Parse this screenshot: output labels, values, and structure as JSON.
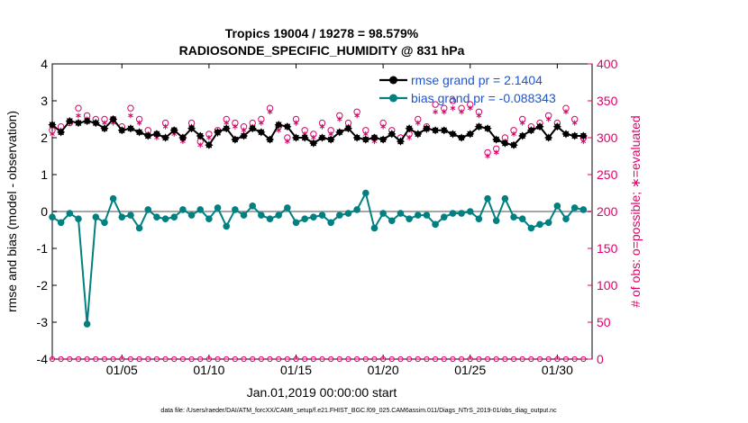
{
  "chart_data": {
    "type": "line",
    "title": "Tropics 19004 / 19278 = 98.579%",
    "subtitle": "RADIOSONDE_SPECIFIC_HUMIDITY @ 831 hPa",
    "xlabel": "Jan.01,2019 00:00:00 start",
    "ylabel_left": "rmse and bias (model - observation)",
    "ylabel_right": "# of obs: o=possible; ∗=evaluated",
    "footer": "data file: /Users/raeder/DAI/ATM_forcXX/CAM6_setup/f.e21.FHIST_BGC.f09_025.CAM6assim.011/Diags_NTrS_2019-01/obs_diag_output.nc",
    "xlim": [
      1,
      32
    ],
    "ylim_left": [
      -4,
      4
    ],
    "ylim_right": [
      0,
      400
    ],
    "x_ticks": [
      5,
      10,
      15,
      20,
      25,
      30
    ],
    "x_tick_labels": [
      "01/05",
      "01/10",
      "01/15",
      "01/20",
      "01/25",
      "01/30"
    ],
    "y_left_ticks": [
      -4,
      -3,
      -2,
      -1,
      0,
      1,
      2,
      3,
      4
    ],
    "y_left_tick_labels": [
      "-4",
      "-3",
      "-2",
      "-1",
      "0",
      "1",
      "2",
      "3",
      "4"
    ],
    "y_right_ticks": [
      0,
      50,
      100,
      150,
      200,
      250,
      300,
      350,
      400
    ],
    "y_right_tick_labels": [
      "0",
      "50",
      "100",
      "150",
      "200",
      "250",
      "300",
      "350",
      "400"
    ],
    "x": [
      1.0,
      1.5,
      2.0,
      2.5,
      3.0,
      3.5,
      4.0,
      4.5,
      5.0,
      5.5,
      6.0,
      6.5,
      7.0,
      7.5,
      8.0,
      8.5,
      9.0,
      9.5,
      10.0,
      10.5,
      11.0,
      11.5,
      12.0,
      12.5,
      13.0,
      13.5,
      14.0,
      14.5,
      15.0,
      15.5,
      16.0,
      16.5,
      17.0,
      17.5,
      18.0,
      18.5,
      19.0,
      19.5,
      20.0,
      20.5,
      21.0,
      21.5,
      22.0,
      22.5,
      23.0,
      23.5,
      24.0,
      24.5,
      25.0,
      25.5,
      26.0,
      26.5,
      27.0,
      27.5,
      28.0,
      28.5,
      29.0,
      29.5,
      30.0,
      30.5,
      31.0,
      31.5
    ],
    "series": [
      {
        "name": "rmse",
        "legend": "rmse grand pr = 2.1404",
        "color": "#000000",
        "axis": "left",
        "values": [
          2.35,
          2.15,
          2.45,
          2.4,
          2.45,
          2.4,
          2.25,
          2.5,
          2.2,
          2.25,
          2.15,
          2.05,
          2.1,
          2.0,
          2.2,
          2.0,
          2.25,
          2.05,
          1.8,
          2.15,
          2.25,
          1.95,
          2.05,
          2.25,
          2.15,
          1.95,
          2.35,
          2.3,
          2.0,
          2.0,
          1.85,
          2.0,
          1.95,
          2.15,
          2.25,
          2.0,
          1.95,
          2.0,
          1.95,
          2.1,
          1.9,
          2.25,
          2.1,
          2.25,
          2.2,
          2.2,
          2.1,
          2.0,
          2.1,
          2.3,
          2.25,
          1.95,
          1.85,
          1.8,
          2.05,
          2.2,
          2.3,
          2.0,
          2.3,
          2.1,
          2.05,
          2.05
        ]
      },
      {
        "name": "bias",
        "legend": "bias grand pr = -0.088343",
        "color": "#008080",
        "axis": "left",
        "values": [
          -0.15,
          -0.3,
          -0.05,
          -0.2,
          -3.05,
          -0.15,
          -0.3,
          0.35,
          -0.15,
          -0.1,
          -0.45,
          0.05,
          -0.15,
          -0.2,
          -0.15,
          0.05,
          -0.1,
          0.05,
          -0.2,
          0.1,
          -0.4,
          0.05,
          -0.1,
          0.15,
          -0.1,
          -0.2,
          -0.1,
          0.1,
          -0.3,
          -0.2,
          -0.15,
          -0.1,
          -0.3,
          -0.1,
          -0.05,
          0.05,
          0.5,
          -0.45,
          -0.05,
          -0.25,
          -0.05,
          -0.2,
          -0.1,
          -0.1,
          -0.35,
          -0.15,
          -0.05,
          -0.05,
          0.0,
          -0.2,
          0.35,
          -0.25,
          0.35,
          -0.15,
          -0.2,
          -0.45,
          -0.35,
          -0.3,
          0.15,
          -0.2,
          0.1,
          0.05
        ]
      },
      {
        "name": "possible",
        "legend": "",
        "color": "#e0006b",
        "axis": "right",
        "marker": "open-circle",
        "values": [
          310,
          315,
          320,
          340,
          330,
          325,
          325,
          325,
          315,
          340,
          325,
          310,
          305,
          320,
          310,
          300,
          320,
          295,
          305,
          310,
          325,
          320,
          315,
          320,
          325,
          340,
          315,
          300,
          325,
          310,
          305,
          320,
          310,
          330,
          320,
          335,
          310,
          300,
          320,
          310,
          300,
          305,
          325,
          315,
          345,
          340,
          350,
          340,
          345,
          335,
          280,
          285,
          300,
          310,
          325,
          315,
          320,
          330,
          320,
          340,
          325,
          300
        ]
      },
      {
        "name": "evaluated",
        "legend": "",
        "color": "#e0006b",
        "axis": "right",
        "marker": "asterisk",
        "values": [
          305,
          310,
          320,
          330,
          325,
          320,
          320,
          320,
          310,
          330,
          320,
          305,
          300,
          315,
          305,
          295,
          315,
          290,
          300,
          305,
          320,
          315,
          310,
          315,
          320,
          335,
          310,
          295,
          320,
          305,
          300,
          315,
          305,
          325,
          315,
          330,
          305,
          295,
          315,
          305,
          295,
          300,
          320,
          310,
          335,
          335,
          340,
          335,
          340,
          330,
          275,
          280,
          295,
          305,
          320,
          310,
          315,
          325,
          315,
          335,
          320,
          295
        ]
      }
    ]
  }
}
